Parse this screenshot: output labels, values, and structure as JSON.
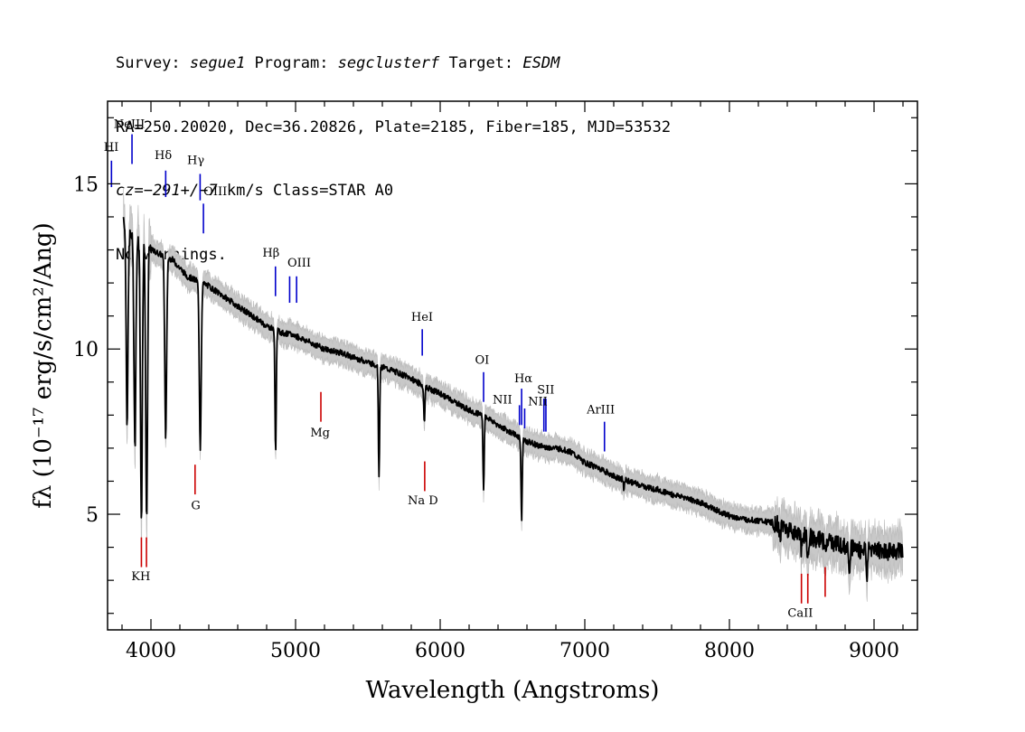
{
  "header": {
    "line1": {
      "survey_label": "Survey: ",
      "survey": "segue1",
      "program_label": " Program: ",
      "program": "segclusterf",
      "target_label": " Target: ",
      "target": "ESDM"
    },
    "line2": "RA=250.20020, Dec=36.20826, Plate=2185, Fiber=185, MJD=53532",
    "line3": {
      "cz_label": "cz=",
      "cz": "−291+/−7",
      "rest": " km/s Class=STAR A0"
    },
    "line4": "No warnings."
  },
  "chart_data": {
    "type": "line",
    "xlabel": "Wavelength (Angstroms)",
    "ylabel": "fλ (10⁻¹⁷ erg/s/cm²/Ang)",
    "xlim": [
      3700,
      9300
    ],
    "ylim": [
      1.5,
      17.5
    ],
    "x_ticks": [
      4000,
      5000,
      6000,
      7000,
      8000,
      9000
    ],
    "y_ticks": [
      5,
      10,
      15
    ],
    "grid": false,
    "series": [
      {
        "role": "flux",
        "color": "#000000",
        "x": [
          3810,
          3850,
          3900,
          3950,
          4000,
          4050,
          4150,
          4250,
          4400,
          4500,
          4600,
          4700,
          4800,
          4900,
          5000,
          5100,
          5200,
          5300,
          5400,
          5500,
          5700,
          5800,
          5900,
          6000,
          6100,
          6200,
          6300,
          6400,
          6500,
          6600,
          6700,
          6800,
          6900,
          7000,
          7100,
          7200,
          7300,
          7400,
          7500,
          7600,
          7700,
          7800,
          7900,
          8000,
          8100,
          8200,
          8300,
          8400,
          8500,
          8600,
          8700,
          8800,
          8900,
          9000,
          9100,
          9200
        ],
        "y": [
          14.0,
          13.5,
          13.2,
          13.4,
          13.0,
          12.9,
          12.7,
          12.2,
          11.9,
          11.6,
          11.3,
          11.0,
          10.7,
          10.5,
          10.4,
          10.2,
          10.0,
          9.9,
          9.75,
          9.6,
          9.3,
          9.1,
          8.85,
          8.65,
          8.4,
          8.15,
          8.0,
          7.7,
          7.45,
          7.2,
          7.05,
          7.0,
          6.9,
          6.55,
          6.4,
          6.15,
          6.0,
          5.85,
          5.75,
          5.6,
          5.5,
          5.35,
          5.15,
          4.95,
          4.85,
          4.8,
          4.75,
          4.55,
          4.4,
          4.25,
          4.15,
          4.05,
          3.9,
          3.95,
          3.85,
          3.9
        ]
      },
      {
        "role": "error",
        "color": "#bbbbbb"
      }
    ],
    "absorption_features": [
      {
        "x": 3835,
        "y": 7.8
      },
      {
        "x": 3889,
        "y": 7.0
      },
      {
        "x": 3934,
        "y": 4.8
      },
      {
        "x": 3970,
        "y": 4.8
      },
      {
        "x": 4102,
        "y": 7.3
      },
      {
        "x": 4341,
        "y": 7.0
      },
      {
        "x": 4862,
        "y": 6.8
      },
      {
        "x": 5577,
        "y": 6.2
      },
      {
        "x": 5890,
        "y": 7.8
      },
      {
        "x": 6300,
        "y": 5.8
      },
      {
        "x": 6563,
        "y": 4.8
      },
      {
        "x": 7270,
        "y": 5.8
      },
      {
        "x": 8350,
        "y": 4.3
      },
      {
        "x": 8498,
        "y": 3.8
      },
      {
        "x": 8542,
        "y": 3.6
      },
      {
        "x": 8662,
        "y": 3.8
      },
      {
        "x": 8830,
        "y": 3.3
      },
      {
        "x": 8950,
        "y": 3.0
      }
    ],
    "emission_lines": {
      "color": "#0000cc",
      "items": [
        {
          "label": "HI",
          "x": 3727,
          "ymin": 14.9,
          "ymax": 15.7
        },
        {
          "label": "NeIII",
          "x": 3869,
          "ymin": 15.6,
          "ymax": 16.5
        },
        {
          "label": "Hδ",
          "x": 4102,
          "ymin": 14.6,
          "ymax": 15.4
        },
        {
          "label": "Hγ",
          "x": 4340,
          "ymin": 14.5,
          "ymax": 15.3
        },
        {
          "label": "OIII",
          "x": 4363,
          "ymin": 13.5,
          "ymax": 14.4
        },
        {
          "label": "Hβ",
          "x": 4861,
          "ymin": 11.6,
          "ymax": 12.5
        },
        {
          "label": "OIII",
          "x": 4959,
          "ymin": 11.4,
          "ymax": 12.2
        },
        {
          "label": "OIII",
          "x": 5007,
          "ymin": 11.4,
          "ymax": 12.2
        },
        {
          "label": "HeI",
          "x": 5876,
          "ymin": 9.8,
          "ymax": 10.6
        },
        {
          "label": "OI",
          "x": 6300,
          "ymin": 8.4,
          "ymax": 9.3
        },
        {
          "label": "NII",
          "x": 6548,
          "ymin": 7.7,
          "ymax": 8.3
        },
        {
          "label": "Hα",
          "x": 6563,
          "ymin": 7.7,
          "ymax": 8.8
        },
        {
          "label": "NII",
          "x": 6584,
          "ymin": 7.6,
          "ymax": 8.2
        },
        {
          "label": "SII",
          "x": 6717,
          "ymin": 7.5,
          "ymax": 8.5
        },
        {
          "label": "SII",
          "x": 6731,
          "ymin": 7.5,
          "ymax": 8.5
        },
        {
          "label": "ArIII",
          "x": 7136,
          "ymin": 6.9,
          "ymax": 7.8
        }
      ],
      "text_labels": [
        {
          "text": "HI",
          "x": 3725,
          "y": 16.0
        },
        {
          "text": "NeIII",
          "x": 3850,
          "y": 16.7
        },
        {
          "text": "Hδ",
          "x": 4085,
          "y": 15.75
        },
        {
          "text": "Hγ",
          "x": 4310,
          "y": 15.6
        },
        {
          "text": "OIII",
          "x": 4445,
          "y": 14.65
        },
        {
          "text": "Hβ",
          "x": 4830,
          "y": 12.8
        },
        {
          "text": "OIII",
          "x": 5025,
          "y": 12.5
        },
        {
          "text": "HeI",
          "x": 5875,
          "y": 10.85
        },
        {
          "text": "OI",
          "x": 6290,
          "y": 9.55
        },
        {
          "text": "NII",
          "x": 6430,
          "y": 8.35
        },
        {
          "text": "Hα",
          "x": 6575,
          "y": 9.0
        },
        {
          "text": "NII",
          "x": 6675,
          "y": 8.3
        },
        {
          "text": "SII",
          "x": 6730,
          "y": 8.65
        },
        {
          "text": "ArIII",
          "x": 7110,
          "y": 8.05
        }
      ]
    },
    "absorption_lines": {
      "color": "#cc0000",
      "items": [
        {
          "label": "K",
          "x": 3934,
          "ymin": 3.4,
          "ymax": 4.3
        },
        {
          "label": "H",
          "x": 3969,
          "ymin": 3.4,
          "ymax": 4.3
        },
        {
          "label": "G",
          "x": 4305,
          "ymin": 5.6,
          "ymax": 6.5
        },
        {
          "label": "Mg",
          "x": 5175,
          "ymin": 7.8,
          "ymax": 8.7
        },
        {
          "label": "Na D",
          "x": 5893,
          "ymin": 5.7,
          "ymax": 6.6
        },
        {
          "label": "CaII",
          "x": 8498,
          "ymin": 2.3,
          "ymax": 3.2
        },
        {
          "label": "CaII",
          "x": 8542,
          "ymin": 2.3,
          "ymax": 3.2
        },
        {
          "label": "CaII",
          "x": 8662,
          "ymin": 2.5,
          "ymax": 3.4
        }
      ],
      "text_labels": [
        {
          "text": "KH",
          "x": 3930,
          "y": 3.0
        },
        {
          "text": "G",
          "x": 4310,
          "y": 5.15
        },
        {
          "text": "Mg",
          "x": 5170,
          "y": 7.35
        },
        {
          "text": "Na D",
          "x": 5880,
          "y": 5.3
        },
        {
          "text": "CaII",
          "x": 8490,
          "y": 1.9
        }
      ]
    }
  }
}
